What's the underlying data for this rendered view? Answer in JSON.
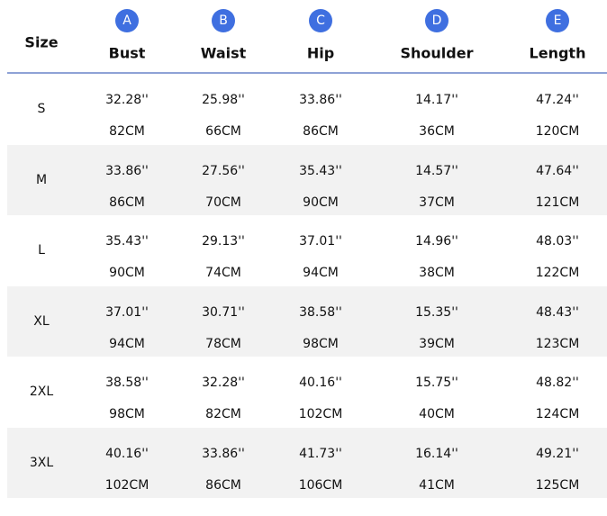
{
  "table": {
    "size_header": "Size",
    "columns": [
      {
        "letter": "A",
        "name": "Bust"
      },
      {
        "letter": "B",
        "name": "Waist"
      },
      {
        "letter": "C",
        "name": "Hip"
      },
      {
        "letter": "D",
        "name": "Shoulder"
      },
      {
        "letter": "E",
        "name": "Length"
      }
    ],
    "rows": [
      {
        "size": "S",
        "cells": [
          [
            "32.28''",
            "82CM"
          ],
          [
            "25.98''",
            "66CM"
          ],
          [
            "33.86''",
            "86CM"
          ],
          [
            "14.17''",
            "36CM"
          ],
          [
            "47.24''",
            "120CM"
          ]
        ]
      },
      {
        "size": "M",
        "cells": [
          [
            "33.86''",
            "86CM"
          ],
          [
            "27.56''",
            "70CM"
          ],
          [
            "35.43''",
            "90CM"
          ],
          [
            "14.57''",
            "37CM"
          ],
          [
            "47.64''",
            "121CM"
          ]
        ]
      },
      {
        "size": "L",
        "cells": [
          [
            "35.43''",
            "90CM"
          ],
          [
            "29.13''",
            "74CM"
          ],
          [
            "37.01''",
            "94CM"
          ],
          [
            "14.96''",
            "38CM"
          ],
          [
            "48.03''",
            "122CM"
          ]
        ]
      },
      {
        "size": "XL",
        "cells": [
          [
            "37.01''",
            "94CM"
          ],
          [
            "30.71''",
            "78CM"
          ],
          [
            "38.58''",
            "98CM"
          ],
          [
            "15.35''",
            "39CM"
          ],
          [
            "48.43''",
            "123CM"
          ]
        ]
      },
      {
        "size": "2XL",
        "cells": [
          [
            "38.58''",
            "98CM"
          ],
          [
            "32.28''",
            "82CM"
          ],
          [
            "40.16''",
            "102CM"
          ],
          [
            "15.75''",
            "40CM"
          ],
          [
            "48.82''",
            "124CM"
          ]
        ]
      },
      {
        "size": "3XL",
        "cells": [
          [
            "40.16''",
            "102CM"
          ],
          [
            "33.86''",
            "86CM"
          ],
          [
            "41.73''",
            "106CM"
          ],
          [
            "16.14''",
            "41CM"
          ],
          [
            "49.21''",
            "125CM"
          ]
        ]
      }
    ]
  }
}
